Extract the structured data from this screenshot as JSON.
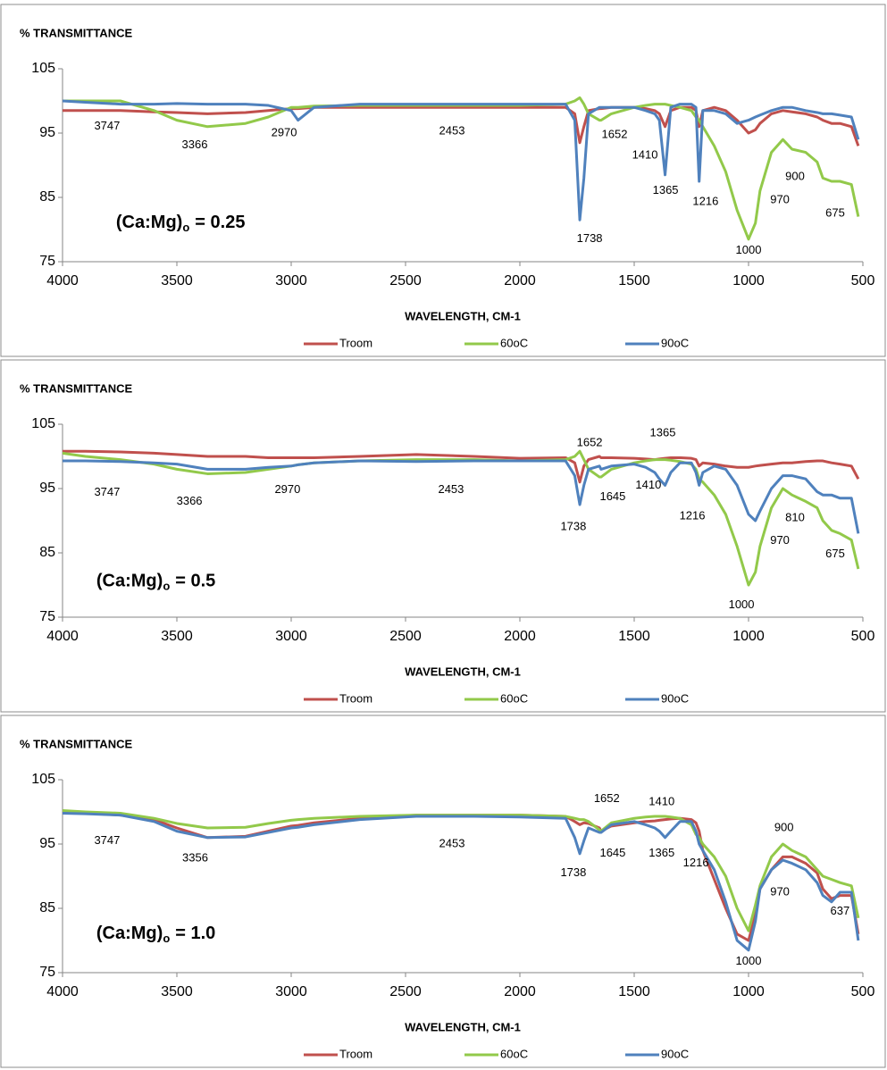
{
  "chart_data": [
    {
      "type": "line",
      "ylabel": "% TRANSMITTANCE",
      "xlabel": "WAVELENGTH, CM-1",
      "panel_label": {
        "text": "(Ca:Mg)",
        "sub": "o",
        "rest": "= 0.25"
      },
      "xlim": [
        4000,
        500
      ],
      "xticks": [
        4000,
        3500,
        3000,
        2500,
        2000,
        1500,
        1000,
        500
      ],
      "ylim": [
        75,
        105
      ],
      "yticks": [
        75,
        85,
        95,
        105
      ],
      "grid": false,
      "x": [
        4000,
        3900,
        3747,
        3600,
        3500,
        3366,
        3200,
        3100,
        3000,
        2970,
        2900,
        2700,
        2453,
        2200,
        2000,
        1800,
        1760,
        1738,
        1720,
        1700,
        1652,
        1645,
        1600,
        1500,
        1450,
        1410,
        1390,
        1365,
        1340,
        1300,
        1250,
        1230,
        1216,
        1200,
        1150,
        1100,
        1050,
        1000,
        970,
        950,
        900,
        850,
        810,
        750,
        700,
        675,
        637,
        600,
        550,
        520
      ],
      "series": [
        {
          "name": "Troom",
          "color": "#c0504d",
          "values": [
            98.5,
            98.5,
            98.5,
            98.3,
            98.2,
            98,
            98.2,
            98.5,
            98.8,
            98.8,
            99,
            99,
            99,
            99,
            99,
            99,
            98,
            93.5,
            96,
            98.5,
            98.8,
            98.8,
            99,
            99,
            98.8,
            98.5,
            98,
            96,
            98.5,
            99,
            99,
            98.5,
            96,
            98.5,
            99,
            98.5,
            97,
            95,
            95.5,
            96.5,
            98,
            98.5,
            98.3,
            98,
            97.5,
            97,
            96.5,
            96.5,
            96,
            93
          ]
        },
        {
          "name": "60oC",
          "color": "#92c94a",
          "values": [
            100,
            100,
            100,
            98.5,
            97,
            96,
            96.5,
            97.5,
            99,
            99,
            99.2,
            99.3,
            99.3,
            99.3,
            99.3,
            99.5,
            100,
            100.5,
            99.5,
            98,
            97,
            97,
            98,
            99,
            99.3,
            99.5,
            99.5,
            99.5,
            99.3,
            99,
            98.5,
            97.5,
            97,
            96,
            93,
            89,
            83,
            78.5,
            81,
            86,
            92,
            94,
            92.5,
            92,
            90.5,
            88,
            87.5,
            87.5,
            87,
            82
          ]
        },
        {
          "name": "90oC",
          "color": "#4f81bd",
          "values": [
            100,
            99.8,
            99.5,
            99.5,
            99.6,
            99.5,
            99.5,
            99.3,
            98.5,
            97,
            99,
            99.5,
            99.5,
            99.5,
            99.5,
            99.5,
            97,
            81.5,
            88,
            98,
            99,
            99,
            99,
            99,
            98.5,
            98,
            97,
            88.5,
            99,
            99.5,
            99.5,
            99,
            87.5,
            98.5,
            98.5,
            98,
            96.5,
            97,
            97.5,
            97.8,
            98.5,
            99,
            99,
            98.5,
            98.2,
            98,
            98,
            97.8,
            97.5,
            94
          ]
        }
      ],
      "annotations": [
        "3747",
        "3366",
        "2970",
        "2453",
        "1738",
        "1652",
        "1410",
        "1365",
        "1216",
        "1000",
        "970",
        "900",
        "675"
      ]
    },
    {
      "type": "line",
      "ylabel": "% TRANSMITTANCE",
      "xlabel": "WAVELENGTH, CM-1",
      "panel_label": {
        "text": "(Ca:Mg)",
        "sub": "o",
        "rest": "= 0.5"
      },
      "xlim": [
        4000,
        500
      ],
      "xticks": [
        4000,
        3500,
        3000,
        2500,
        2000,
        1500,
        1000,
        500
      ],
      "ylim": [
        75,
        105
      ],
      "yticks": [
        75,
        85,
        95,
        105
      ],
      "grid": false,
      "x": [
        4000,
        3900,
        3747,
        3600,
        3500,
        3366,
        3200,
        3100,
        3000,
        2970,
        2900,
        2700,
        2453,
        2200,
        2000,
        1800,
        1760,
        1738,
        1720,
        1700,
        1652,
        1645,
        1600,
        1500,
        1450,
        1410,
        1390,
        1365,
        1340,
        1300,
        1250,
        1230,
        1216,
        1200,
        1150,
        1100,
        1050,
        1000,
        970,
        950,
        900,
        850,
        810,
        750,
        700,
        675,
        637,
        600,
        550,
        520
      ],
      "series": [
        {
          "name": "Troom",
          "color": "#c0504d",
          "values": [
            100.8,
            100.8,
            100.7,
            100.5,
            100.3,
            100,
            100,
            99.8,
            99.8,
            99.8,
            99.8,
            100,
            100.3,
            100,
            99.7,
            99.8,
            99,
            96,
            98.5,
            99.5,
            100,
            99.8,
            99.8,
            99.7,
            99.6,
            99.5,
            99.6,
            99.7,
            99.8,
            99.8,
            99.7,
            99.5,
            98.5,
            99,
            98.8,
            98.5,
            98.3,
            98.3,
            98.5,
            98.6,
            98.8,
            99,
            99,
            99.2,
            99.3,
            99.3,
            99,
            98.8,
            98.5,
            96.5
          ]
        },
        {
          "name": "60oC",
          "color": "#92c94a",
          "values": [
            100.5,
            100,
            99.5,
            98.8,
            98,
            97.3,
            97.5,
            98,
            98.5,
            98.7,
            99,
            99.3,
            99.5,
            99.5,
            99.3,
            99.5,
            100,
            100.8,
            99.5,
            98,
            96.8,
            96.8,
            98,
            99,
            99.3,
            99.5,
            99.5,
            99.5,
            99.4,
            99.2,
            98.8,
            98,
            96.5,
            96,
            94,
            91,
            86,
            80,
            82,
            86,
            92,
            95,
            94,
            93,
            92,
            90,
            88.5,
            88,
            87,
            82.5
          ]
        },
        {
          "name": "90oC",
          "color": "#4f81bd",
          "values": [
            99.3,
            99.3,
            99.2,
            99,
            98.8,
            98,
            98,
            98.3,
            98.5,
            98.7,
            99,
            99.3,
            99.2,
            99.3,
            99.3,
            99.3,
            97,
            92.5,
            95.5,
            98,
            98.5,
            98,
            98.5,
            98.8,
            98.3,
            97.5,
            96.5,
            95.5,
            97.5,
            99,
            99,
            97.5,
            95.5,
            97.5,
            98.5,
            98,
            95.5,
            91,
            90,
            91.5,
            95,
            97,
            97,
            96.5,
            94.5,
            94,
            94,
            93.5,
            93.5,
            88
          ]
        }
      ],
      "annotations": [
        "3747",
        "3366",
        "2970",
        "2453",
        "1652",
        "1365",
        "1738",
        "1645",
        "1410",
        "1216",
        "970",
        "810",
        "675",
        "1000"
      ]
    },
    {
      "type": "line",
      "ylabel": "% TRANSMITTANCE",
      "xlabel": "WAVELENGTH, CM-1",
      "panel_label": {
        "text": "(Ca:Mg)",
        "sub": "o",
        "rest": "= 1.0"
      },
      "xlim": [
        4000,
        500
      ],
      "xticks": [
        4000,
        3500,
        3000,
        2500,
        2000,
        1500,
        1000,
        500
      ],
      "ylim": [
        75,
        105
      ],
      "yticks": [
        75,
        85,
        95,
        105
      ],
      "grid": false,
      "x": [
        4000,
        3900,
        3747,
        3600,
        3500,
        3366,
        3200,
        3100,
        3000,
        2970,
        2900,
        2700,
        2453,
        2200,
        2000,
        1800,
        1760,
        1738,
        1720,
        1700,
        1652,
        1645,
        1600,
        1500,
        1450,
        1410,
        1390,
        1365,
        1340,
        1300,
        1250,
        1230,
        1216,
        1200,
        1150,
        1100,
        1050,
        1000,
        970,
        950,
        900,
        850,
        810,
        750,
        700,
        675,
        637,
        600,
        550,
        520
      ],
      "series": [
        {
          "name": "Troom",
          "color": "#c0504d",
          "values": [
            100,
            99.8,
            99.5,
            98.8,
            97.5,
            96,
            96.2,
            97,
            97.8,
            97.9,
            98.3,
            99,
            99.5,
            99.5,
            99.5,
            99.3,
            98.5,
            98,
            98.3,
            98.2,
            97.5,
            97,
            97.8,
            98.3,
            98.5,
            98.6,
            98.7,
            98.8,
            98.9,
            99,
            98.8,
            98.3,
            97,
            94,
            89.5,
            85,
            81,
            80,
            84,
            88,
            91,
            93,
            93,
            92,
            90.5,
            88,
            86.5,
            87,
            87,
            81
          ]
        },
        {
          "name": "60oC",
          "color": "#92c94a",
          "values": [
            100.2,
            100,
            99.8,
            99,
            98.2,
            97.5,
            97.6,
            98.2,
            98.7,
            98.8,
            99,
            99.3,
            99.5,
            99.5,
            99.5,
            99.3,
            99,
            98.8,
            98.8,
            98.5,
            97.2,
            97,
            98.3,
            99,
            99.2,
            99.3,
            99.3,
            99.3,
            99.2,
            99,
            98,
            96.5,
            96,
            95,
            93,
            90,
            85,
            81.5,
            85.5,
            88.5,
            93,
            95,
            94,
            93,
            91,
            90,
            89.5,
            89,
            88.5,
            83.5
          ]
        },
        {
          "name": "90oC",
          "color": "#4f81bd",
          "values": [
            99.8,
            99.7,
            99.5,
            98.5,
            97,
            96,
            96.1,
            96.8,
            97.5,
            97.6,
            98,
            98.8,
            99.3,
            99.3,
            99.2,
            99,
            96,
            93.5,
            95.5,
            97.5,
            96.8,
            96.8,
            98,
            98.5,
            98,
            97.5,
            97,
            96,
            97,
            98.5,
            98.5,
            97,
            95,
            94,
            91,
            86,
            80,
            78.5,
            83,
            88,
            91,
            92.5,
            92,
            91,
            89,
            87,
            86,
            87.5,
            87.5,
            80
          ]
        }
      ],
      "annotations": [
        "3747",
        "3356",
        "2453",
        "1652",
        "1410",
        "1738",
        "1645",
        "1365",
        "1216",
        "900",
        "970",
        "637",
        "1000"
      ]
    }
  ]
}
